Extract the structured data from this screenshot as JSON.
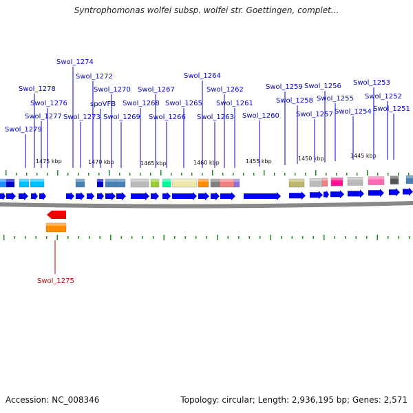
{
  "header": {
    "title": "Syntrophomonas wolfei subsp. wolfei str. Goettingen, complet..."
  },
  "footer": {
    "accession": "Accession: NC_008346",
    "summary": "Topology: circular; Length: 2,936,195 bp; Genes: 2,571"
  },
  "colors": {
    "forward_gene": "#0000ee",
    "reverse_gene": "#ee0000",
    "label_forward": "#0000cc",
    "label_reverse": "#cc0000",
    "tick": "#228822",
    "backbone": "#777777"
  },
  "scale_labels": [
    "1475 kbp",
    "1470 kbp",
    "1465 kbp",
    "1460 kbp",
    "1455 kbp",
    "1450 kbp",
    "1445 kbp"
  ],
  "forward_gene_labels": [
    "Swol_1279",
    "Swol_1278",
    "Swol_1277",
    "Swol_1276",
    "Swol_1274",
    "Swol_1273",
    "Swol_1272",
    "spoVFB",
    "Swol_1270",
    "Swol_1269",
    "Swol_1268",
    "Swol_1267",
    "Swol_1266",
    "Swol_1265",
    "Swol_1264",
    "Swol_1263",
    "Swol_1262",
    "Swol_1261",
    "Swol_1260",
    "Swol_1259",
    "Swol_1258",
    "Swol_1257",
    "Swol_1256",
    "Swol_1255",
    "Swol_1254",
    "Swol_1253",
    "Swol_1252",
    "Swol_1251"
  ],
  "reverse_gene_labels": [
    "Swol_1275"
  ],
  "cog_colors": [
    "#1e90ff",
    "#00bfff",
    "#4682b4",
    "#0000cd",
    "#bbbbbb",
    "#9acd32",
    "#00fa9a",
    "#eee8aa",
    "#ff8c00",
    "#f08080",
    "#808080",
    "#9370db",
    "#bdb76b",
    "#ff1493",
    "#555555",
    "#ff69b4"
  ]
}
